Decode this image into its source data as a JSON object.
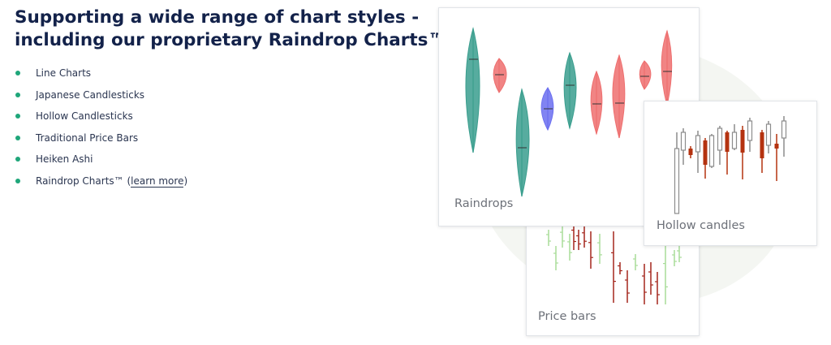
{
  "heading": {
    "line1": "Supporting a wide range of chart styles -",
    "line2": "including our proprietary Raindrop Charts™"
  },
  "features": [
    {
      "label": "Line Charts"
    },
    {
      "label": "Japanese Candlesticks"
    },
    {
      "label": "Hollow Candlesticks"
    },
    {
      "label": "Traditional Price Bars"
    },
    {
      "label": "Heiken Ashi"
    },
    {
      "label": "Raindrop Charts™ (",
      "link": "learn more",
      "suffix": ")"
    }
  ],
  "cards": {
    "raindrops": {
      "label": "Raindrops"
    },
    "hollow": {
      "label": "Hollow candles"
    },
    "pricebars": {
      "label": "Price bars"
    }
  },
  "colors": {
    "accent_dot": "#1fa67a",
    "bullish_teal": "#3a9e8e",
    "bearish_red": "#ee6f6f",
    "neutral_blue": "#6b6ff0",
    "candle_dark_red": "#b4320f",
    "candle_gray": "#8c8c8c",
    "bar_green": "#a8dc98",
    "bar_red": "#a4261c"
  }
}
